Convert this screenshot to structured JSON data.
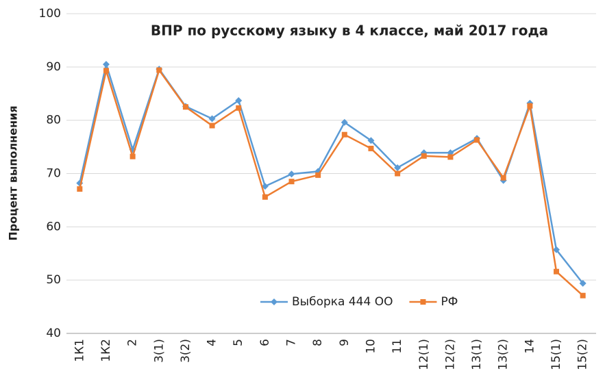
{
  "chart_data": {
    "type": "line",
    "title": "ВПР по русскому языку в 4 классе, май 2017 года",
    "y_label": "Процент выполнения",
    "categories": [
      "1К1",
      "1К2",
      "2",
      "3(1)",
      "3(2)",
      "4",
      "5",
      "6",
      "7",
      "8",
      "9",
      "10",
      "11",
      "12(1)",
      "12(2)",
      "13(1)",
      "13(2)",
      "14",
      "15(1)",
      "15(2)"
    ],
    "series": [
      {
        "name": "Выборка 444 ОО",
        "color": "#5b9bd5",
        "marker": "diamond",
        "values": [
          68.2,
          90.5,
          74.5,
          89.6,
          82.6,
          80.3,
          83.7,
          67.6,
          69.9,
          70.4,
          79.6,
          76.2,
          71.1,
          73.9,
          73.9,
          76.6,
          68.7,
          83.2,
          55.7,
          49.4
        ]
      },
      {
        "name": "РФ",
        "color": "#ed7d31",
        "marker": "square",
        "values": [
          67.1,
          89.3,
          73.2,
          89.4,
          82.5,
          79.0,
          82.3,
          65.6,
          68.5,
          69.7,
          77.3,
          74.7,
          70.0,
          73.3,
          73.1,
          76.3,
          69.2,
          82.7,
          51.6,
          47.1
        ]
      }
    ],
    "ylim": [
      40,
      100
    ],
    "yticks": [
      40,
      50,
      60,
      70,
      80,
      90,
      100
    ],
    "grid": true,
    "legend": "bottom"
  }
}
